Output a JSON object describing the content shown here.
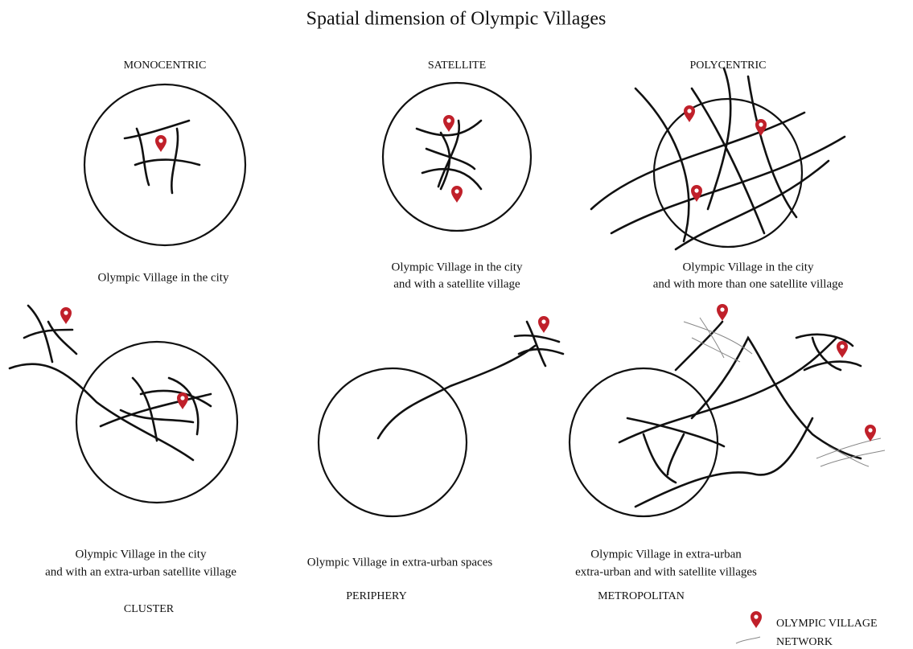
{
  "title": "Spatial dimension of Olympic Villages",
  "panels": [
    {
      "name": "MONOCENTRIC",
      "caption": [
        "Olympic Village in the city"
      ]
    },
    {
      "name": "SATELLITE",
      "caption": [
        "Olympic Village in the city",
        "and with a satellite village"
      ]
    },
    {
      "name": "POLYCENTRIC",
      "caption": [
        "Olympic Village in the city",
        "and with more than one satellite village"
      ]
    },
    {
      "name": "CLUSTER",
      "caption": [
        "Olympic Village in the city",
        "and with an extra-urban satellite village"
      ]
    },
    {
      "name": "PERIPHERY",
      "caption": [
        "Olympic Village in extra-urban spaces"
      ]
    },
    {
      "name": "METROPOLITAN",
      "caption": [
        "Olympic Village in extra-urban",
        "extra-urban and with satellite villages"
      ]
    }
  ],
  "legend": [
    "OLYMPIC VILLAGE",
    "NETWORK"
  ]
}
